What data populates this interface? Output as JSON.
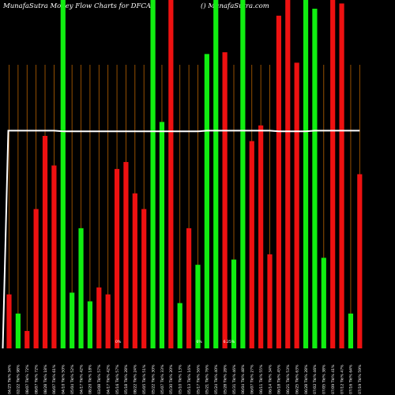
{
  "header": {
    "title": "MunafaSutra  Money  Flow  Charts for DFCA",
    "credit": "() MunafaSutra.com"
  },
  "chart_data": {
    "type": "bar",
    "title": "MunafaSutra  Money  Flow  Charts for DFCA",
    "x_axis_location": "bottom",
    "y_axis": "none",
    "ylim": [
      0,
      100
    ],
    "grid": "vertical guide lines behind bars",
    "colors": {
      "up": "#11ee11",
      "down": "#ee1111",
      "guide": "#b86200",
      "line": "#ffffff",
      "background": "#000000"
    },
    "bars": [
      {
        "label": "04/25 Tkl% 34%",
        "value": 15.5,
        "color": "red"
      },
      {
        "label": "02/22 Tkl% 98%",
        "value": 10.0,
        "color": "green"
      },
      {
        "label": "08/07 Tkl% 72%",
        "value": 5.0,
        "color": "red"
      },
      {
        "label": "08/07 Tkl% 72%",
        "value": 40.0,
        "color": "red"
      },
      {
        "label": "08/28 Tkl% 18%",
        "value": 61.0,
        "color": "red"
      },
      {
        "label": "06/07 Tkl% 61%",
        "value": 52.5,
        "color": "red"
      },
      {
        "label": "04/10 Tkl% 50%",
        "value": 100,
        "color": "green"
      },
      {
        "label": "05/04 Tkl% 52%",
        "value": 16.0,
        "color": "green"
      },
      {
        "label": "04/17 Tkl% 42%",
        "value": 34.5,
        "color": "green"
      },
      {
        "label": "08/20 Tkl% 18%",
        "value": 13.5,
        "color": "green"
      },
      {
        "label": "03/08 Tkl% 57%",
        "value": 17.5,
        "color": "red"
      },
      {
        "label": "04/17 Tkl% 42%",
        "value": 15.5,
        "color": "red"
      },
      {
        "label": "05/16 Tkl% 57%",
        "value": 51.5,
        "color": "red"
      },
      {
        "label": "05/18 Tkl% 28%",
        "value": 53.5,
        "color": "red"
      },
      {
        "label": "08/22 Tkl% 24%",
        "value": 44.5,
        "color": "red"
      },
      {
        "label": "05/05 Tkl% 51%",
        "value": 40.0,
        "color": "red"
      },
      {
        "label": "05/22 Tkl% 30%",
        "value": 100,
        "color": "green"
      },
      {
        "label": "05/07 Tkl% 33%",
        "value": 65.0,
        "color": "green"
      },
      {
        "label": "05/30 Tkl% 20%",
        "value": 100,
        "color": "red"
      },
      {
        "label": "05/10 Tkl% 13%",
        "value": 13.0,
        "color": "green"
      },
      {
        "label": "05/13 Tkl% 16%",
        "value": 34.5,
        "color": "red"
      },
      {
        "label": "05/17 Tkl% 56%",
        "value": 24.0,
        "color": "green"
      },
      {
        "label": "05/21 Tkl% 76%",
        "value": 84.5,
        "color": "green"
      },
      {
        "label": "05/24 Tkl% 40%",
        "value": 100,
        "color": "green"
      },
      {
        "label": "05/28 Tkl% 28%",
        "value": 85.0,
        "color": "red"
      },
      {
        "label": "05/31 Tkl% 46%",
        "value": 25.5,
        "color": "green"
      },
      {
        "label": "06/04 Tkl% 48%",
        "value": 100,
        "color": "green"
      },
      {
        "label": "06/07 Tkl% 27%",
        "value": 59.5,
        "color": "red"
      },
      {
        "label": "06/11 Tkl% 55%",
        "value": 64.0,
        "color": "red"
      },
      {
        "label": "06/14 Tkl% 34%",
        "value": 27.0,
        "color": "red"
      },
      {
        "label": "06/18 Tkl% 45%",
        "value": 95.5,
        "color": "red"
      },
      {
        "label": "06/21 Tkl% 53%",
        "value": 100,
        "color": "red"
      },
      {
        "label": "06/25 Tkl% 63%",
        "value": 82.0,
        "color": "red"
      },
      {
        "label": "06/28 Tkl% 28%",
        "value": 100,
        "color": "green"
      },
      {
        "label": "07/02 Tkl% 46%",
        "value": 97.5,
        "color": "green"
      },
      {
        "label": "07/05 Tkl% 38%",
        "value": 26.0,
        "color": "green"
      },
      {
        "label": "07/09 Tkl% 41%",
        "value": 100,
        "color": "red"
      },
      {
        "label": "07/12 Tkl% 47%",
        "value": 99.0,
        "color": "red"
      },
      {
        "label": "07/16 Tkl% 64%",
        "value": 10.0,
        "color": "green"
      },
      {
        "label": "07/19 Tkl% 59%",
        "value": 50.0,
        "color": "red"
      }
    ],
    "line": {
      "color": "white",
      "values": [
        62.5,
        62.5,
        62.5,
        62.5,
        62.5,
        62.5,
        62.3,
        62.3,
        62.3,
        62.3,
        62.3,
        62.3,
        62.3,
        62.3,
        62.3,
        62.3,
        62.3,
        62.3,
        62.3,
        62.3,
        62.3,
        62.3,
        62.5,
        62.5,
        62.5,
        62.5,
        62.5,
        62.5,
        62.5,
        62.5,
        62.3,
        62.3,
        62.3,
        62.3,
        62.5,
        62.5,
        62.5,
        62.5,
        62.5,
        62.5
      ],
      "start_value": 0
    },
    "stray_marks": [
      {
        "text": "0%",
        "bar_index": 12
      },
      {
        "text": "6%",
        "bar_index": 21
      },
      {
        "text": "6.25%",
        "bar_index": 24
      }
    ]
  }
}
